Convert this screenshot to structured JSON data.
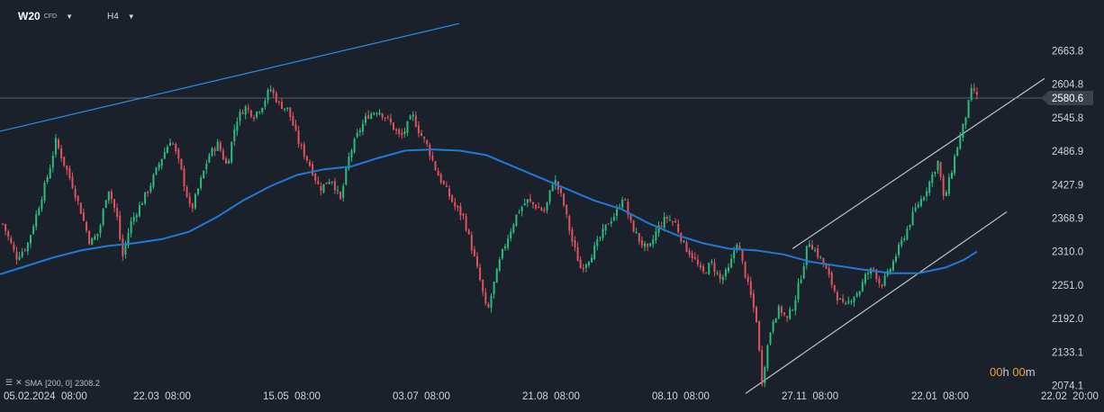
{
  "header": {
    "symbol": "W20",
    "symbol_sub": "CFD",
    "timeframe": "H4"
  },
  "indicator": {
    "label": "SMA",
    "params": "[200,  0]",
    "value": "2308.2"
  },
  "timer": {
    "hours": "00",
    "h_unit": "h",
    "minutes": "00",
    "m_unit": "m"
  },
  "colors": {
    "background": "#1b212b",
    "up_candle": "#2bbd7e",
    "down_candle": "#e0525f",
    "sma": "#1f7ad6",
    "trendline_blue": "#2a8bea",
    "channel": "#b9c3cf",
    "price_label_bg": "#3a424d",
    "timer": "#e8a23a"
  },
  "chart_data": {
    "type": "candlestick",
    "y_axis_ticks": [
      "2663.8",
      "2604.8",
      "2545.8",
      "2486.9",
      "2427.9",
      "2368.9",
      "2310.0",
      "2251.0",
      "2192.0",
      "2133.1",
      "2074.1"
    ],
    "x_axis_ticks": [
      "05.02.2024  08:00",
      "22.03  08:00",
      "15.05  08:00",
      "03.07  08:00",
      "21.08  08:00",
      "08.10  08:00",
      "27.11  08:00",
      "22.01  08:00",
      "22.02  20:00"
    ],
    "current_price": "2580.6",
    "ylim": [
      2074.1,
      2663.8
    ],
    "close_path": [
      [
        0,
        2370
      ],
      [
        8,
        2340
      ],
      [
        18,
        2300
      ],
      [
        30,
        2320
      ],
      [
        45,
        2400
      ],
      [
        55,
        2455
      ],
      [
        62,
        2505
      ],
      [
        70,
        2470
      ],
      [
        80,
        2430
      ],
      [
        90,
        2380
      ],
      [
        100,
        2325
      ],
      [
        110,
        2345
      ],
      [
        120,
        2425
      ],
      [
        130,
        2370
      ],
      [
        136,
        2300
      ],
      [
        145,
        2360
      ],
      [
        155,
        2390
      ],
      [
        165,
        2420
      ],
      [
        178,
        2470
      ],
      [
        190,
        2510
      ],
      [
        200,
        2460
      ],
      [
        212,
        2380
      ],
      [
        222,
        2430
      ],
      [
        232,
        2480
      ],
      [
        242,
        2500
      ],
      [
        252,
        2460
      ],
      [
        262,
        2540
      ],
      [
        272,
        2565
      ],
      [
        282,
        2550
      ],
      [
        292,
        2570
      ],
      [
        300,
        2598
      ],
      [
        310,
        2570
      ],
      [
        320,
        2560
      ],
      [
        332,
        2500
      ],
      [
        345,
        2460
      ],
      [
        355,
        2420
      ],
      [
        368,
        2440
      ],
      [
        378,
        2400
      ],
      [
        388,
        2480
      ],
      [
        398,
        2520
      ],
      [
        408,
        2550
      ],
      [
        420,
        2560
      ],
      [
        432,
        2540
      ],
      [
        445,
        2510
      ],
      [
        458,
        2550
      ],
      [
        466,
        2520
      ],
      [
        475,
        2495
      ],
      [
        485,
        2450
      ],
      [
        495,
        2420
      ],
      [
        505,
        2390
      ],
      [
        515,
        2370
      ],
      [
        525,
        2310
      ],
      [
        533,
        2260
      ],
      [
        541,
        2200
      ],
      [
        548,
        2250
      ],
      [
        556,
        2300
      ],
      [
        565,
        2340
      ],
      [
        575,
        2380
      ],
      [
        585,
        2400
      ],
      [
        595,
        2390
      ],
      [
        605,
        2380
      ],
      [
        615,
        2440
      ],
      [
        625,
        2400
      ],
      [
        635,
        2330
      ],
      [
        645,
        2280
      ],
      [
        655,
        2300
      ],
      [
        665,
        2330
      ],
      [
        675,
        2360
      ],
      [
        685,
        2380
      ],
      [
        692,
        2410
      ],
      [
        700,
        2360
      ],
      [
        710,
        2330
      ],
      [
        720,
        2310
      ],
      [
        730,
        2350
      ],
      [
        740,
        2370
      ],
      [
        750,
        2360
      ],
      [
        760,
        2320
      ],
      [
        770,
        2300
      ],
      [
        780,
        2270
      ],
      [
        790,
        2290
      ],
      [
        800,
        2260
      ],
      [
        810,
        2280
      ],
      [
        818,
        2330
      ],
      [
        826,
        2280
      ],
      [
        834,
        2230
      ],
      [
        840,
        2190
      ],
      [
        846,
        2080
      ],
      [
        852,
        2140
      ],
      [
        858,
        2190
      ],
      [
        866,
        2210
      ],
      [
        874,
        2190
      ],
      [
        882,
        2220
      ],
      [
        890,
        2270
      ],
      [
        898,
        2330
      ],
      [
        906,
        2310
      ],
      [
        914,
        2290
      ],
      [
        922,
        2260
      ],
      [
        930,
        2230
      ],
      [
        938,
        2210
      ],
      [
        946,
        2230
      ],
      [
        954,
        2240
      ],
      [
        962,
        2270
      ],
      [
        970,
        2280
      ],
      [
        978,
        2250
      ],
      [
        986,
        2270
      ],
      [
        994,
        2300
      ],
      [
        1002,
        2330
      ],
      [
        1010,
        2360
      ],
      [
        1018,
        2390
      ],
      [
        1026,
        2410
      ],
      [
        1034,
        2440
      ],
      [
        1042,
        2470
      ],
      [
        1048,
        2400
      ],
      [
        1055,
        2440
      ],
      [
        1062,
        2490
      ],
      [
        1068,
        2520
      ],
      [
        1074,
        2560
      ],
      [
        1080,
        2600
      ],
      [
        1086,
        2578
      ]
    ],
    "sma_path": [
      [
        0,
        2270
      ],
      [
        30,
        2285
      ],
      [
        60,
        2300
      ],
      [
        90,
        2312
      ],
      [
        120,
        2320
      ],
      [
        150,
        2325
      ],
      [
        180,
        2332
      ],
      [
        210,
        2345
      ],
      [
        240,
        2370
      ],
      [
        270,
        2400
      ],
      [
        300,
        2425
      ],
      [
        330,
        2445
      ],
      [
        360,
        2455
      ],
      [
        390,
        2460
      ],
      [
        420,
        2475
      ],
      [
        450,
        2488
      ],
      [
        480,
        2490
      ],
      [
        510,
        2488
      ],
      [
        540,
        2480
      ],
      [
        570,
        2460
      ],
      [
        600,
        2440
      ],
      [
        630,
        2420
      ],
      [
        660,
        2400
      ],
      [
        690,
        2385
      ],
      [
        720,
        2360
      ],
      [
        750,
        2340
      ],
      [
        780,
        2325
      ],
      [
        810,
        2315
      ],
      [
        840,
        2312
      ],
      [
        870,
        2305
      ],
      [
        900,
        2292
      ],
      [
        930,
        2285
      ],
      [
        960,
        2278
      ],
      [
        990,
        2272
      ],
      [
        1020,
        2272
      ],
      [
        1050,
        2282
      ],
      [
        1070,
        2295
      ],
      [
        1085,
        2310
      ]
    ],
    "drawings": [
      {
        "kind": "trendline",
        "from": [
          0,
          2522
        ],
        "to": [
          510,
          2712
        ]
      },
      {
        "kind": "channel-upper",
        "from": [
          880,
          2315
        ],
        "to": [
          1160,
          2615
        ]
      },
      {
        "kind": "channel-lower",
        "from": [
          828,
          2060
        ],
        "to": [
          1118,
          2380
        ]
      }
    ]
  }
}
